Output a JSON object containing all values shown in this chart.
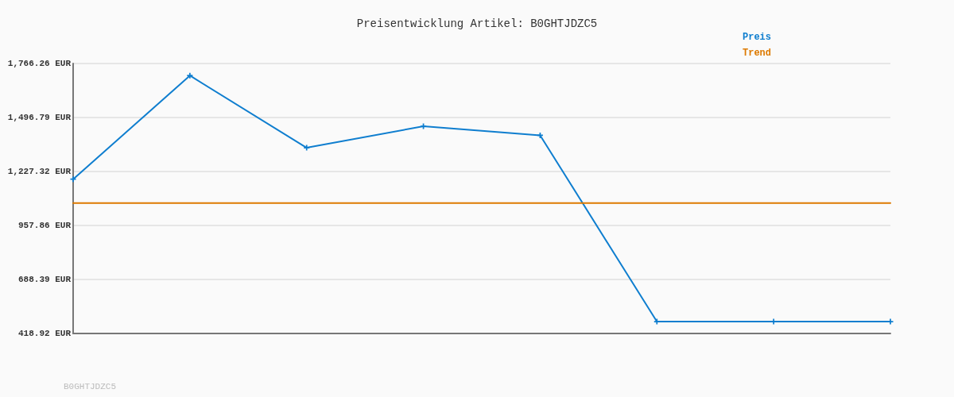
{
  "chart_data": {
    "type": "line",
    "title": "Preisentwicklung Artikel: B0GHTJDZC5",
    "annotations": [
      "B0GHTJDZC5"
    ],
    "categories": [
      null,
      null,
      null,
      null,
      null,
      null,
      null,
      null
    ],
    "series": [
      {
        "name": "Preis",
        "color": "#0f7ecf",
        "values": [
          1189,
          1706,
          1346,
          1453,
          1408,
          478,
          478,
          478
        ]
      },
      {
        "name": "Trend",
        "color": "#dd7a00",
        "marker": "none",
        "values": [
          1070,
          1070,
          1070,
          1070,
          1070,
          1070,
          1070,
          1070
        ]
      }
    ],
    "ylim": [
      418.92,
      1766.26
    ],
    "yticks": [
      {
        "value": 418.92,
        "label": "418.92 EUR"
      },
      {
        "value": 688.39,
        "label": "688.39 EUR"
      },
      {
        "value": 957.86,
        "label": "957.86 EUR"
      },
      {
        "value": 1227.32,
        "label": "1,227.32 EUR"
      },
      {
        "value": 1496.79,
        "label": "1,496.79 EUR"
      },
      {
        "value": 1766.26,
        "label": "1,766.26 EUR"
      }
    ],
    "tick_labels": "y",
    "grid": "y",
    "legend": "top right",
    "marker": "cross",
    "line_style": "solid"
  }
}
